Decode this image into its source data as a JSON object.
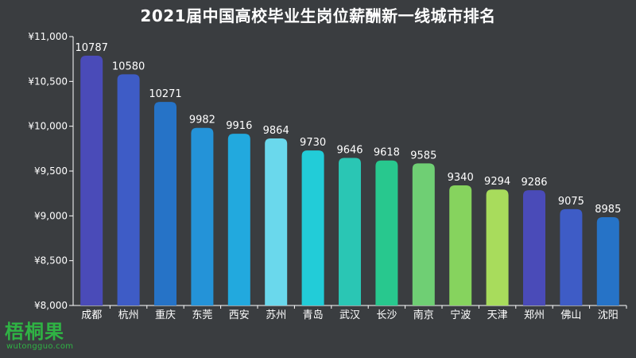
{
  "chart_data": {
    "type": "bar",
    "title": "2021届中国高校毕业生岗位薪酬新一线城市排名",
    "categories": [
      "成都",
      "杭州",
      "重庆",
      "东莞",
      "西安",
      "苏州",
      "青岛",
      "武汉",
      "长沙",
      "南京",
      "宁波",
      "天津",
      "郑州",
      "佛山",
      "沈阳"
    ],
    "values": [
      10787,
      10580,
      10271,
      9982,
      9916,
      9864,
      9730,
      9646,
      9618,
      9585,
      9340,
      9294,
      9286,
      9075,
      8985
    ],
    "data_labels": [
      "10787",
      "10580",
      "10271",
      "9982",
      "9916",
      "9864",
      "9730",
      "9646",
      "9618",
      "9585",
      "9340",
      "9294",
      "9286",
      "9075",
      "8985"
    ],
    "ylim": [
      8000,
      11000
    ],
    "yticks": [
      8000,
      8500,
      9000,
      9500,
      10000,
      10500,
      11000
    ],
    "ytick_labels": [
      "¥8,000",
      "¥8,500",
      "¥9,000",
      "¥9,500",
      "¥10,000",
      "¥10,500",
      "¥11,000"
    ],
    "xlabel": "",
    "ylabel": "",
    "grid": false,
    "bar_colors": [
      "#4a4bb8",
      "#3e5cc6",
      "#2673c7",
      "#2493d8",
      "#22a9de",
      "#6ad8ec",
      "#22ccd8",
      "#2ac6b4",
      "#28c88e",
      "#6fcf74",
      "#86d35e",
      "#a8dc5c",
      "#4a4bb8",
      "#3e5cc6",
      "#2673c7"
    ]
  },
  "colors": {
    "background": "#3a3d40",
    "axis": "#ffffff",
    "text": "#ffffff",
    "watermark": "#2fb344"
  },
  "watermark": {
    "main": "梧桐果",
    "sub": "wutongguo.com"
  }
}
